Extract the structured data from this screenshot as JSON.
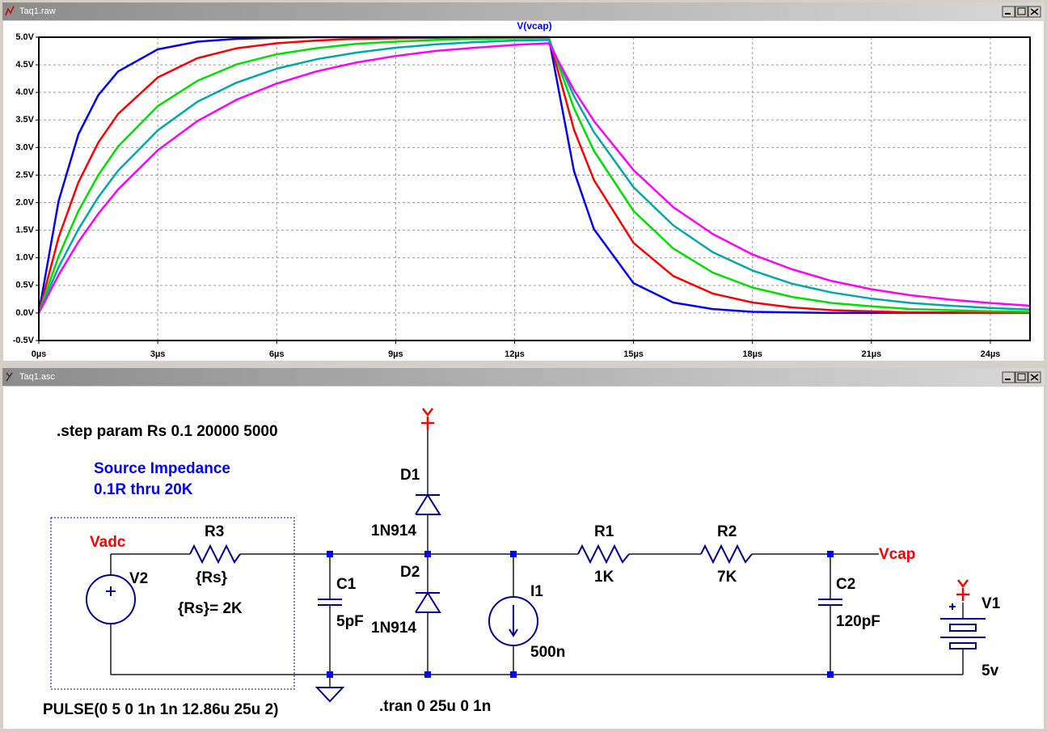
{
  "windows": [
    {
      "title": "Taq1.raw"
    },
    {
      "title": "Taq1.asc"
    }
  ],
  "chart_data": {
    "type": "line",
    "title": "V(vcap)",
    "title_color": "#0000ff",
    "x": [
      0,
      0.5,
      1,
      1.5,
      2,
      3,
      4,
      5,
      6,
      7,
      8,
      9,
      10,
      11,
      12,
      12.86,
      13.5,
      14,
      15,
      16,
      17,
      18,
      19,
      20,
      21,
      22,
      23,
      24,
      25
    ],
    "series": [
      {
        "color": "#0000ff",
        "values": [
          0,
          2.03,
          3.24,
          3.95,
          4.38,
          4.78,
          4.92,
          4.97,
          4.99,
          5.0,
          5.0,
          5.0,
          5.0,
          5.0,
          5.0,
          5.0,
          2.57,
          1.52,
          0.54,
          0.19,
          0.07,
          0.02,
          0.01,
          0.0,
          0.0,
          0.0,
          0.0,
          0.0,
          0.0
        ]
      },
      {
        "color": "#ff0000",
        "values": [
          0,
          1.37,
          2.37,
          3.09,
          3.61,
          4.27,
          4.62,
          4.8,
          4.89,
          4.94,
          4.97,
          4.98,
          4.99,
          5.0,
          5.0,
          5.0,
          3.32,
          2.41,
          1.27,
          0.67,
          0.35,
          0.19,
          0.1,
          0.05,
          0.03,
          0.01,
          0.01,
          0.0,
          0.0
        ]
      },
      {
        "color": "#00e000",
        "values": [
          0,
          1.03,
          1.85,
          2.5,
          3.02,
          3.75,
          4.21,
          4.51,
          4.69,
          4.8,
          4.88,
          4.92,
          4.95,
          4.97,
          4.98,
          4.99,
          3.71,
          2.94,
          1.85,
          1.17,
          0.73,
          0.46,
          0.29,
          0.18,
          0.12,
          0.07,
          0.05,
          0.03,
          0.02
        ]
      },
      {
        "color": "#00a8a8",
        "values": [
          0,
          0.83,
          1.52,
          2.1,
          2.58,
          3.31,
          3.83,
          4.18,
          4.43,
          4.6,
          4.72,
          4.81,
          4.87,
          4.91,
          4.94,
          4.95,
          3.93,
          3.28,
          2.28,
          1.59,
          1.1,
          0.77,
          0.53,
          0.37,
          0.26,
          0.18,
          0.13,
          0.09,
          0.06
        ]
      },
      {
        "color": "#ff00ff",
        "values": [
          0,
          0.69,
          1.29,
          1.8,
          2.24,
          2.95,
          3.48,
          3.87,
          4.16,
          4.38,
          4.54,
          4.66,
          4.75,
          4.81,
          4.86,
          4.89,
          4.04,
          3.48,
          2.59,
          1.92,
          1.43,
          1.06,
          0.79,
          0.58,
          0.43,
          0.32,
          0.24,
          0.18,
          0.13
        ]
      }
    ],
    "xlim": [
      0,
      25
    ],
    "xticks": [
      {
        "value": 0,
        "label": "0µs"
      },
      {
        "value": 3,
        "label": "3µs"
      },
      {
        "value": 6,
        "label": "6µs"
      },
      {
        "value": 9,
        "label": "9µs"
      },
      {
        "value": 12,
        "label": "12µs"
      },
      {
        "value": 15,
        "label": "15µs"
      },
      {
        "value": 18,
        "label": "18µs"
      },
      {
        "value": 21,
        "label": "21µs"
      },
      {
        "value": 24,
        "label": "24µs"
      }
    ],
    "ylim": [
      -0.5,
      5.0
    ],
    "yticks": [
      {
        "value": -0.5,
        "label": "-0.5V"
      },
      {
        "value": 0,
        "label": "0.0V"
      },
      {
        "value": 0.5,
        "label": "0.5V"
      },
      {
        "value": 1.0,
        "label": "1.0V"
      },
      {
        "value": 1.5,
        "label": "1.5V"
      },
      {
        "value": 2.0,
        "label": "2.0V"
      },
      {
        "value": 2.5,
        "label": "2.5V"
      },
      {
        "value": 3.0,
        "label": "3.0V"
      },
      {
        "value": 3.5,
        "label": "3.5V"
      },
      {
        "value": 4.0,
        "label": "4.0V"
      },
      {
        "value": 4.5,
        "label": "4.5V"
      },
      {
        "value": 5.0,
        "label": "5.0V"
      }
    ],
    "grid": true
  },
  "schematic": {
    "directives": [
      ".step param Rs 0.1 20000 5000",
      "PULSE(0 5 0 1n 1n 12.86u 25u 2)",
      ".tran 0 25u 0 1n"
    ],
    "comment": [
      "Source Impedance",
      "0.1R thru 20K"
    ],
    "param_note": "{Rs}= 2K",
    "nets": [
      "Vadc",
      "Vcap"
    ],
    "components": [
      {
        "ref": "V2"
      },
      {
        "ref": "R3",
        "value": "{Rs}"
      },
      {
        "ref": "C1",
        "value": "5pF"
      },
      {
        "ref": "D1",
        "value": "1N914"
      },
      {
        "ref": "D2",
        "value": "1N914"
      },
      {
        "ref": "I1",
        "value": "500n"
      },
      {
        "ref": "R1",
        "value": "1K"
      },
      {
        "ref": "R2",
        "value": "7K"
      },
      {
        "ref": "C2",
        "value": "120pF"
      },
      {
        "ref": "V1",
        "value": "5v"
      }
    ]
  }
}
